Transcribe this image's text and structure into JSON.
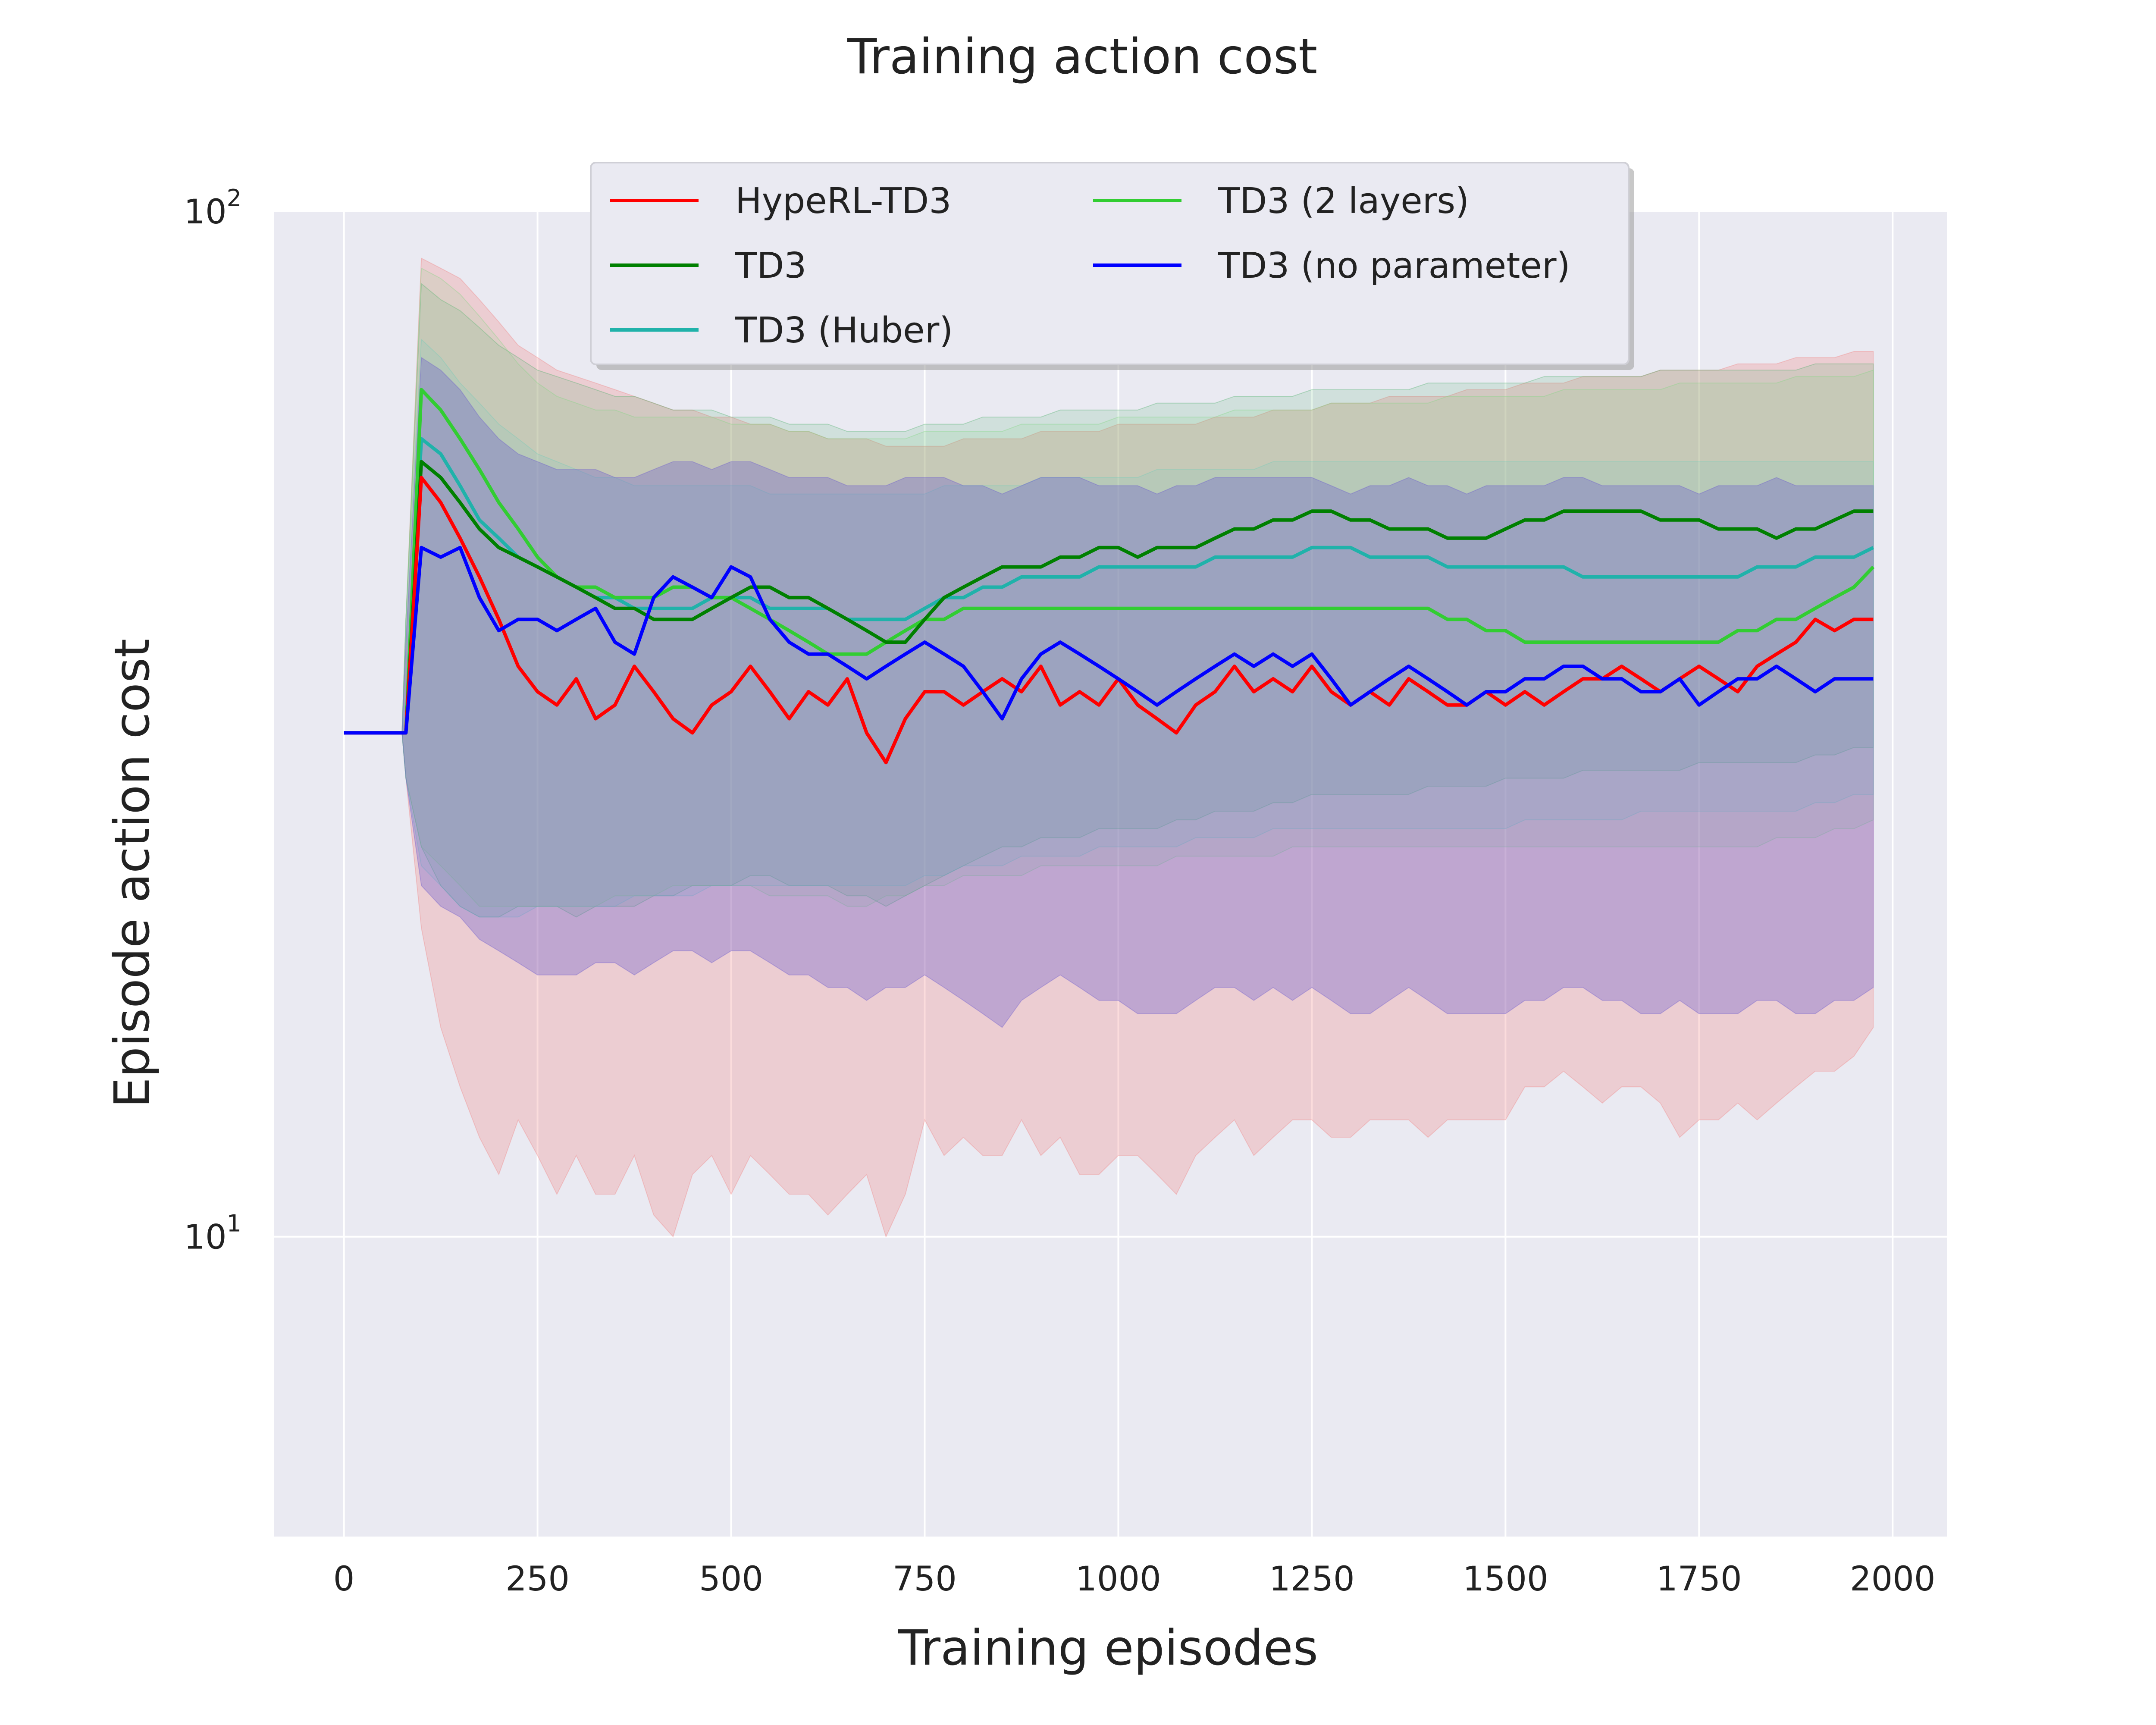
{
  "chart_data": {
    "type": "line",
    "title": "Training action cost",
    "xlabel": "Training episodes",
    "ylabel": "Episode action cost",
    "yscale": "log",
    "xlim": [
      -90,
      2070
    ],
    "ylim": [
      5.1,
      100
    ],
    "x_ticks": [
      0,
      250,
      500,
      750,
      1000,
      1250,
      1500,
      1750,
      2000
    ],
    "x_tick_labels": [
      "0",
      "250",
      "500",
      "750",
      "1000",
      "1250",
      "1500",
      "1750",
      "2000"
    ],
    "y_ticks": [
      {
        "value": 100,
        "base": "10",
        "exp": "2"
      },
      {
        "value": 10,
        "base": "10",
        "exp": "1"
      }
    ],
    "grid": true,
    "legend_position": "top-center",
    "legend_columns": 2,
    "x": [
      0,
      75,
      80,
      100,
      125,
      150,
      175,
      200,
      225,
      250,
      275,
      300,
      325,
      350,
      375,
      400,
      425,
      450,
      475,
      500,
      525,
      550,
      575,
      600,
      625,
      650,
      675,
      700,
      725,
      750,
      775,
      800,
      825,
      850,
      875,
      900,
      925,
      950,
      975,
      1000,
      1025,
      1050,
      1075,
      1100,
      1125,
      1150,
      1175,
      1200,
      1225,
      1250,
      1275,
      1300,
      1325,
      1350,
      1375,
      1400,
      1425,
      1450,
      1475,
      1500,
      1525,
      1550,
      1575,
      1600,
      1625,
      1650,
      1675,
      1700,
      1725,
      1750,
      1775,
      1800,
      1825,
      1850,
      1875,
      1900,
      1925,
      1950,
      1975
    ],
    "series": [
      {
        "name": "HypeRL-TD3",
        "color": "#ff0000",
        "band_color": "#f08080",
        "values": [
          31,
          31,
          31,
          55,
          52,
          48,
          44,
          40,
          36,
          34,
          33,
          35,
          32,
          33,
          36,
          34,
          32,
          31,
          33,
          34,
          36,
          34,
          32,
          34,
          33,
          35,
          31,
          29,
          32,
          34,
          34,
          33,
          34,
          35,
          34,
          36,
          33,
          34,
          33,
          35,
          33,
          32,
          31,
          33,
          34,
          36,
          34,
          35,
          34,
          36,
          34,
          33,
          34,
          33,
          35,
          34,
          33,
          33,
          34,
          33,
          34,
          33,
          34,
          35,
          35,
          36,
          35,
          34,
          35,
          36,
          35,
          34,
          36,
          37,
          38,
          40,
          39,
          40,
          40
        ],
        "lower": [
          31,
          31,
          28,
          20,
          16,
          14,
          12.5,
          11.5,
          13,
          12,
          11,
          12,
          11,
          11,
          12,
          10.5,
          10,
          11.5,
          12,
          11,
          12,
          11.5,
          11,
          11,
          10.5,
          11,
          11.5,
          10,
          11,
          13,
          12,
          12.5,
          12,
          12,
          13,
          12,
          12.5,
          11.5,
          11.5,
          12,
          12,
          11.5,
          11,
          12,
          12.5,
          13,
          12,
          12.5,
          13,
          13,
          12.5,
          12.5,
          13,
          13,
          13,
          12.5,
          13,
          13,
          13,
          13,
          14,
          14,
          14.5,
          14,
          13.5,
          14,
          14,
          13.5,
          12.5,
          13,
          13,
          13.5,
          13,
          13.5,
          14,
          14.5,
          14.5,
          15,
          16
        ],
        "upper": [
          31,
          31,
          40,
          90,
          88,
          86,
          82,
          78,
          74,
          72,
          70,
          69,
          68,
          67,
          66,
          65,
          64,
          64,
          63,
          63,
          62,
          62,
          61,
          61,
          60,
          60,
          60,
          59,
          59,
          59,
          59,
          60,
          60,
          60,
          60,
          61,
          61,
          61,
          61,
          62,
          62,
          62,
          62,
          62,
          63,
          63,
          63,
          64,
          64,
          64,
          65,
          65,
          65,
          66,
          66,
          66,
          66,
          67,
          67,
          67,
          68,
          68,
          68,
          69,
          69,
          69,
          69,
          70,
          70,
          70,
          70,
          71,
          71,
          71,
          72,
          72,
          72,
          73,
          73
        ]
      },
      {
        "name": "TD3",
        "color": "#008000",
        "band_color": "#4caf6a",
        "values": [
          31,
          31,
          31,
          57,
          55,
          52,
          49,
          47,
          46,
          45,
          44,
          43,
          42,
          41,
          41,
          40,
          40,
          40,
          41,
          42,
          43,
          43,
          42,
          42,
          41,
          40,
          39,
          38,
          38,
          40,
          42,
          43,
          44,
          45,
          45,
          45,
          46,
          46,
          47,
          47,
          46,
          47,
          47,
          47,
          48,
          49,
          49,
          50,
          50,
          51,
          51,
          50,
          50,
          49,
          49,
          49,
          48,
          48,
          48,
          49,
          50,
          50,
          51,
          51,
          51,
          51,
          51,
          50,
          50,
          50,
          49,
          49,
          49,
          48,
          49,
          49,
          50,
          51,
          51
        ],
        "lower": [
          31,
          31,
          28,
          24,
          22,
          21,
          20.5,
          20.5,
          21,
          21,
          21,
          20.5,
          21,
          21,
          21,
          21.5,
          21.5,
          22,
          22,
          22,
          22.5,
          22.5,
          22,
          22,
          22,
          21.5,
          21.5,
          21,
          21.5,
          22,
          22.5,
          23,
          23.5,
          24,
          24,
          24.5,
          24.5,
          24.5,
          25,
          25,
          25,
          25,
          25.5,
          25.5,
          26,
          26,
          26,
          26.5,
          26.5,
          27,
          27,
          27,
          27,
          27,
          27,
          27.5,
          27.5,
          27.5,
          27.5,
          28,
          28,
          28,
          28,
          28.5,
          28.5,
          28.5,
          28.5,
          28.5,
          28.5,
          29,
          29,
          29,
          29,
          29,
          29,
          29.5,
          29.5,
          30,
          30
        ],
        "upper": [
          31,
          31,
          40,
          85,
          82,
          80,
          77,
          74,
          72,
          70,
          69,
          68,
          67,
          66,
          66,
          65,
          64,
          64,
          64,
          63,
          63,
          63,
          62,
          62,
          62,
          61,
          61,
          61,
          61,
          62,
          62,
          62,
          63,
          63,
          63,
          63,
          64,
          64,
          64,
          64,
          64,
          65,
          65,
          65,
          65,
          66,
          66,
          66,
          66,
          67,
          67,
          67,
          67,
          67,
          67,
          68,
          68,
          68,
          68,
          68,
          68,
          69,
          69,
          69,
          69,
          69,
          69,
          70,
          70,
          70,
          70,
          70,
          70,
          70,
          70,
          71,
          71,
          71,
          71
        ]
      },
      {
        "name": "TD3 (Huber)",
        "color": "#20b2aa",
        "band_color": "#6ccac4",
        "values": [
          31,
          31,
          31,
          60,
          58,
          54,
          50,
          48,
          46,
          45,
          44,
          43,
          42,
          42,
          41,
          41,
          41,
          41,
          42,
          42,
          42,
          41,
          41,
          41,
          41,
          40,
          40,
          40,
          40,
          41,
          42,
          42,
          43,
          43,
          44,
          44,
          44,
          44,
          45,
          45,
          45,
          45,
          45,
          45,
          46,
          46,
          46,
          46,
          46,
          47,
          47,
          47,
          46,
          46,
          46,
          46,
          45,
          45,
          45,
          45,
          45,
          45,
          45,
          44,
          44,
          44,
          44,
          44,
          44,
          44,
          44,
          44,
          45,
          45,
          45,
          46,
          46,
          46,
          47
        ],
        "lower": [
          31,
          31,
          28,
          23,
          22,
          21,
          20.5,
          20.5,
          20.5,
          21,
          21,
          21,
          21,
          21,
          21.5,
          21.5,
          21.5,
          21.5,
          22,
          22,
          22,
          22,
          22,
          22,
          22,
          22,
          22,
          22,
          22,
          22.5,
          22.5,
          23,
          23,
          23,
          23.5,
          23.5,
          23.5,
          23.5,
          24,
          24,
          24,
          24,
          24,
          24.5,
          24.5,
          24.5,
          24.5,
          25,
          25,
          25,
          25,
          25,
          25,
          25,
          25,
          25,
          25,
          25,
          25,
          25,
          25.5,
          25.5,
          25.5,
          25.5,
          25.5,
          25.5,
          26,
          26,
          26,
          26,
          26,
          26,
          26,
          26,
          26,
          26.5,
          26.5,
          27,
          27
        ],
        "upper": [
          31,
          31,
          40,
          75,
          72,
          68,
          65,
          62,
          60,
          58,
          57,
          56,
          55,
          55,
          54,
          54,
          54,
          54,
          54,
          54,
          54,
          53,
          53,
          53,
          53,
          53,
          53,
          53,
          53,
          53,
          54,
          54,
          54,
          54,
          54,
          55,
          55,
          55,
          55,
          55,
          55,
          56,
          56,
          56,
          56,
          56,
          56,
          57,
          57,
          57,
          57,
          57,
          57,
          57,
          57,
          57,
          57,
          57,
          57,
          57,
          57,
          57,
          57,
          57,
          57,
          57,
          57,
          57,
          57,
          57,
          57,
          57,
          57,
          57,
          57,
          57,
          57,
          57,
          57
        ]
      },
      {
        "name": "TD3 (2 layers)",
        "color": "#32cd32",
        "band_color": "#7fd87f",
        "values": [
          31,
          31,
          31,
          67,
          64,
          60,
          56,
          52,
          49,
          46,
          44,
          43,
          43,
          42,
          42,
          42,
          43,
          43,
          42,
          42,
          41,
          40,
          39,
          38,
          37,
          37,
          37,
          38,
          39,
          40,
          40,
          41,
          41,
          41,
          41,
          41,
          41,
          41,
          41,
          41,
          41,
          41,
          41,
          41,
          41,
          41,
          41,
          41,
          41,
          41,
          41,
          41,
          41,
          41,
          41,
          41,
          40,
          40,
          39,
          39,
          38,
          38,
          38,
          38,
          38,
          38,
          38,
          38,
          38,
          38,
          38,
          39,
          39,
          40,
          40,
          41,
          42,
          43,
          45
        ],
        "lower": [
          31,
          31,
          28,
          24,
          23,
          22,
          21,
          21,
          21,
          21,
          21,
          21,
          21,
          21.5,
          21.5,
          21.5,
          22,
          22,
          22,
          22,
          22,
          21.5,
          21.5,
          21.5,
          21.5,
          21,
          21,
          21.5,
          21.5,
          22,
          22,
          22.5,
          22.5,
          22.5,
          22.5,
          23,
          23,
          23,
          23,
          23,
          23,
          23,
          23.5,
          23.5,
          23.5,
          23.5,
          23.5,
          23.5,
          24,
          24,
          24,
          24,
          24,
          24,
          24,
          24,
          24,
          24,
          24,
          24,
          24,
          24,
          24,
          24,
          24,
          24,
          24,
          24,
          24,
          24,
          24,
          24,
          24,
          24.5,
          24.5,
          24.5,
          25,
          25,
          25.5
        ],
        "upper": [
          31,
          31,
          40,
          88,
          86,
          83,
          79,
          75,
          71,
          68,
          66,
          65,
          64,
          64,
          63,
          63,
          63,
          63,
          63,
          62,
          62,
          62,
          61,
          61,
          60,
          60,
          60,
          60,
          60,
          61,
          61,
          61,
          61,
          61,
          62,
          62,
          62,
          62,
          62,
          63,
          63,
          63,
          63,
          63,
          63,
          64,
          64,
          64,
          64,
          64,
          65,
          65,
          65,
          65,
          65,
          65,
          66,
          66,
          66,
          66,
          66,
          66,
          67,
          67,
          67,
          67,
          67,
          67,
          68,
          68,
          68,
          68,
          68,
          68,
          69,
          69,
          69,
          69,
          70
        ]
      },
      {
        "name": "TD3 (no parameter)",
        "color": "#0000ff",
        "band_color": "#6a5acd",
        "values": [
          31,
          31,
          31,
          47,
          46,
          47,
          42,
          39,
          40,
          40,
          39,
          40,
          41,
          38,
          37,
          42,
          44,
          43,
          42,
          45,
          44,
          40,
          38,
          37,
          37,
          36,
          35,
          36,
          37,
          38,
          37,
          36,
          34,
          32,
          35,
          37,
          38,
          37,
          36,
          35,
          34,
          33,
          34,
          35,
          36,
          37,
          36,
          37,
          36,
          37,
          35,
          33,
          34,
          35,
          36,
          35,
          34,
          33,
          34,
          34,
          35,
          35,
          36,
          36,
          35,
          35,
          34,
          34,
          35,
          33,
          34,
          35,
          35,
          36,
          35,
          34,
          35,
          35,
          35
        ],
        "lower": [
          31,
          31,
          28,
          22,
          21,
          20.5,
          19.5,
          19,
          18.5,
          18,
          18,
          18,
          18.5,
          18.5,
          18,
          18.5,
          19,
          19,
          18.5,
          19,
          19,
          18.5,
          18,
          18,
          17.5,
          17.5,
          17,
          17.5,
          17.5,
          18,
          17.5,
          17,
          16.5,
          16,
          17,
          17.5,
          18,
          17.5,
          17,
          17,
          16.5,
          16.5,
          16.5,
          17,
          17.5,
          17.5,
          17,
          17.5,
          17,
          17.5,
          17,
          16.5,
          16.5,
          17,
          17.5,
          17,
          16.5,
          16.5,
          16.5,
          16.5,
          17,
          17,
          17.5,
          17.5,
          17,
          17,
          16.5,
          16.5,
          17,
          16.5,
          16.5,
          16.5,
          17,
          17,
          16.5,
          16.5,
          17,
          17,
          17.5
        ],
        "upper": [
          31,
          31,
          38,
          72,
          70,
          67,
          63,
          60,
          58,
          57,
          56,
          56,
          56,
          55,
          55,
          56,
          57,
          57,
          56,
          57,
          57,
          56,
          55,
          55,
          55,
          54,
          54,
          54,
          55,
          55,
          55,
          54,
          54,
          53,
          54,
          55,
          55,
          55,
          54,
          54,
          54,
          53,
          54,
          54,
          55,
          55,
          55,
          55,
          55,
          55,
          54,
          53,
          54,
          54,
          55,
          54,
          54,
          53,
          54,
          54,
          54,
          54,
          55,
          55,
          54,
          54,
          54,
          54,
          54,
          53,
          54,
          54,
          54,
          55,
          54,
          54,
          54,
          54,
          54
        ]
      }
    ]
  }
}
